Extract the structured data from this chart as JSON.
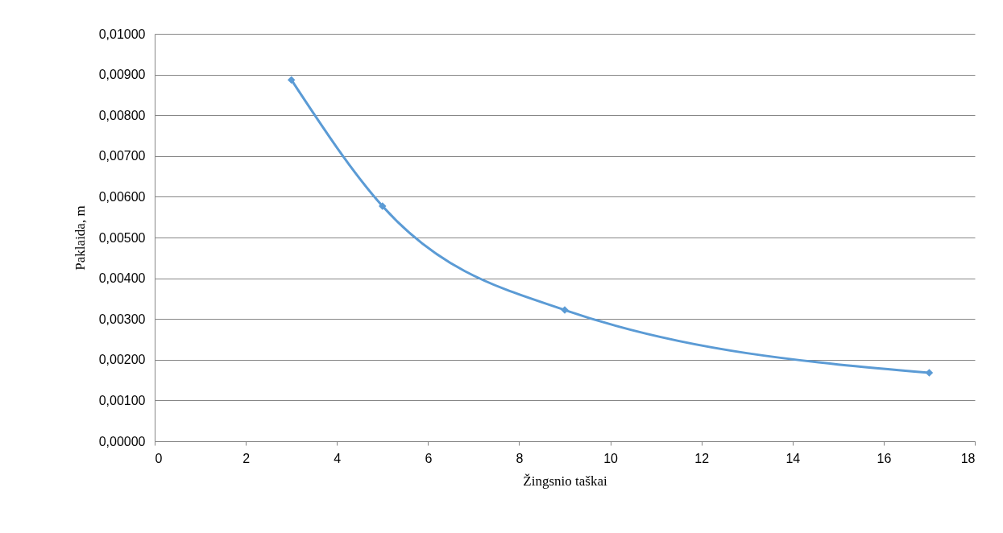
{
  "chart_data": {
    "type": "line",
    "xlabel": "Žingsnio taškai",
    "ylabel": "Paklaida, m",
    "x": [
      3,
      5,
      9,
      17
    ],
    "series": [
      {
        "color": "#5b9bd5",
        "values": [
          0.00887,
          0.00577,
          0.00322,
          0.00168
        ]
      }
    ],
    "xlim": [
      0,
      18
    ],
    "xticks": [
      0,
      2,
      4,
      6,
      8,
      10,
      12,
      14,
      16,
      18
    ],
    "ylim": [
      0,
      0.01
    ],
    "yticks": [
      {
        "value": 0,
        "label": "0,00000"
      },
      {
        "value": 0.001,
        "label": "0,00100"
      },
      {
        "value": 0.002,
        "label": "0,00200"
      },
      {
        "value": 0.003,
        "label": "0,00300"
      },
      {
        "value": 0.004,
        "label": "0,00400"
      },
      {
        "value": 0.005,
        "label": "0,00500"
      },
      {
        "value": 0.006,
        "label": "0,00600"
      },
      {
        "value": 0.007,
        "label": "0,00700"
      },
      {
        "value": 0.008,
        "label": "0,00800"
      },
      {
        "value": 0.009,
        "label": "0,00900"
      },
      {
        "value": 0.01,
        "label": "0,01000"
      }
    ],
    "grid": "y",
    "marker": "diamond",
    "line_style": "solid"
  }
}
